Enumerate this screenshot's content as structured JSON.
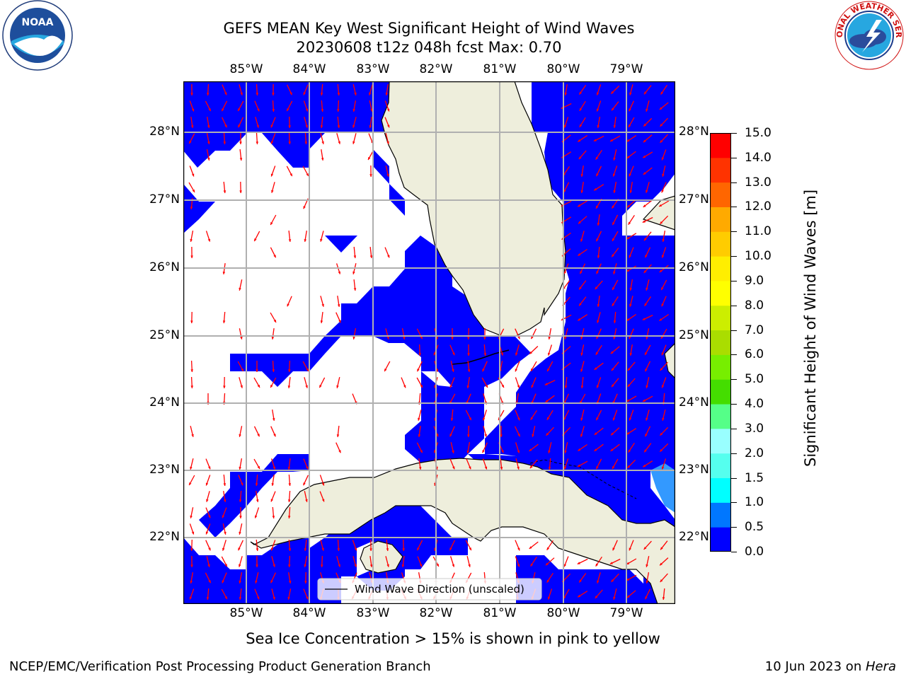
{
  "header": {
    "title_line1": "GEFS MEAN Key West Significant Height of Wind Waves",
    "title_line2": "20230608 t12z 048h fcst   Max: 0.70"
  },
  "logos": {
    "left": {
      "icon": "noaa-logo",
      "text": "NOAA"
    },
    "right": {
      "icon": "nws-logo",
      "text": "NATIONAL WEATHER SERVICE"
    }
  },
  "map": {
    "lon_labels": [
      "85°W",
      "84°W",
      "83°W",
      "82°W",
      "81°W",
      "80°W",
      "79°W"
    ],
    "lat_labels": [
      "28°N",
      "27°N",
      "26°N",
      "25°N",
      "24°N",
      "23°N",
      "22°N"
    ],
    "legend_label": "Wind Wave Direction (unscaled)",
    "colors": {
      "ocean_low": "#0000ff",
      "land": "#eeeedc",
      "arrows": "#ff0000",
      "grid": "#b0b0b0"
    }
  },
  "colorbar": {
    "label": "Significant Height of Wind Waves [m]",
    "ticks": [
      "15.0",
      "14.0",
      "13.0",
      "12.0",
      "11.0",
      "10.0",
      "9.0",
      "8.0",
      "7.0",
      "6.0",
      "5.0",
      "4.0",
      "3.0",
      "2.0",
      "1.5",
      "1.0",
      "0.5",
      "0.0"
    ],
    "colors": [
      "#0000ff",
      "#0077ff",
      "#00ccff",
      "#00ffff",
      "#55ffee",
      "#99ffff",
      "#55ff88",
      "#00ee00",
      "#44dd00",
      "#77ee00",
      "#aadd00",
      "#ccee00",
      "#eeff00",
      "#ffff00",
      "#ffee00",
      "#ffcc00",
      "#ffaa00",
      "#ff8800",
      "#ff6600",
      "#ff3300",
      "#ff0000"
    ]
  },
  "notes": {
    "sea_ice": "Sea Ice Concentration > 15% is shown in pink to yellow"
  },
  "footer": {
    "left": "NCEP/EMC/Verification Post Processing Product Generation Branch",
    "right_prefix": "10 Jun 2023 on ",
    "right_host": "Hera"
  }
}
